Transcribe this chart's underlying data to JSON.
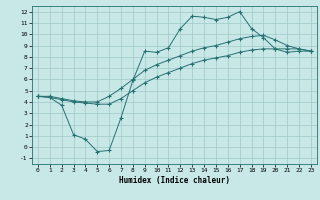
{
  "xlabel": "Humidex (Indice chaleur)",
  "bg_color": "#c8e8e8",
  "grid_color": "#a0c8c8",
  "line_color": "#267070",
  "line1_x": [
    0,
    1,
    2,
    3,
    4,
    5,
    6,
    7,
    8,
    9,
    10,
    11,
    12,
    13,
    14,
    15,
    16,
    17,
    18,
    19,
    20,
    21,
    22,
    23
  ],
  "line1_y": [
    4.5,
    4.4,
    3.7,
    1.1,
    0.7,
    -0.4,
    -0.3,
    2.6,
    5.9,
    8.5,
    8.4,
    8.8,
    10.5,
    11.6,
    11.5,
    11.3,
    11.5,
    12.0,
    10.5,
    9.7,
    8.7,
    8.4,
    8.5,
    8.5
  ],
  "line2_x": [
    0,
    1,
    2,
    3,
    4,
    5,
    6,
    7,
    8,
    9,
    10,
    11,
    12,
    13,
    14,
    15,
    16,
    17,
    18,
    19,
    20,
    21,
    22,
    23
  ],
  "line2_y": [
    4.5,
    4.5,
    4.3,
    4.1,
    4.0,
    4.0,
    4.5,
    5.2,
    6.0,
    6.8,
    7.3,
    7.7,
    8.1,
    8.5,
    8.8,
    9.0,
    9.3,
    9.6,
    9.8,
    9.9,
    9.5,
    9.0,
    8.7,
    8.5
  ],
  "line3_x": [
    0,
    1,
    2,
    3,
    4,
    5,
    6,
    7,
    8,
    9,
    10,
    11,
    12,
    13,
    14,
    15,
    16,
    17,
    18,
    19,
    20,
    21,
    22,
    23
  ],
  "line3_y": [
    4.5,
    4.4,
    4.2,
    4.0,
    3.9,
    3.8,
    3.8,
    4.3,
    5.0,
    5.7,
    6.2,
    6.6,
    7.0,
    7.4,
    7.7,
    7.9,
    8.1,
    8.4,
    8.6,
    8.7,
    8.7,
    8.7,
    8.7,
    8.5
  ],
  "xlim": [
    -0.5,
    23.5
  ],
  "ylim": [
    -1.5,
    12.5
  ],
  "xtick_labels": [
    "0",
    "1",
    "2",
    "3",
    "4",
    "5",
    "6",
    "7",
    "8",
    "9",
    "10",
    "11",
    "12",
    "13",
    "14",
    "15",
    "16",
    "17",
    "18",
    "19",
    "20",
    "21",
    "22",
    "23"
  ],
  "ytick_labels": [
    "-1",
    "0",
    "1",
    "2",
    "3",
    "4",
    "5",
    "6",
    "7",
    "8",
    "9",
    "10",
    "11",
    "12"
  ]
}
